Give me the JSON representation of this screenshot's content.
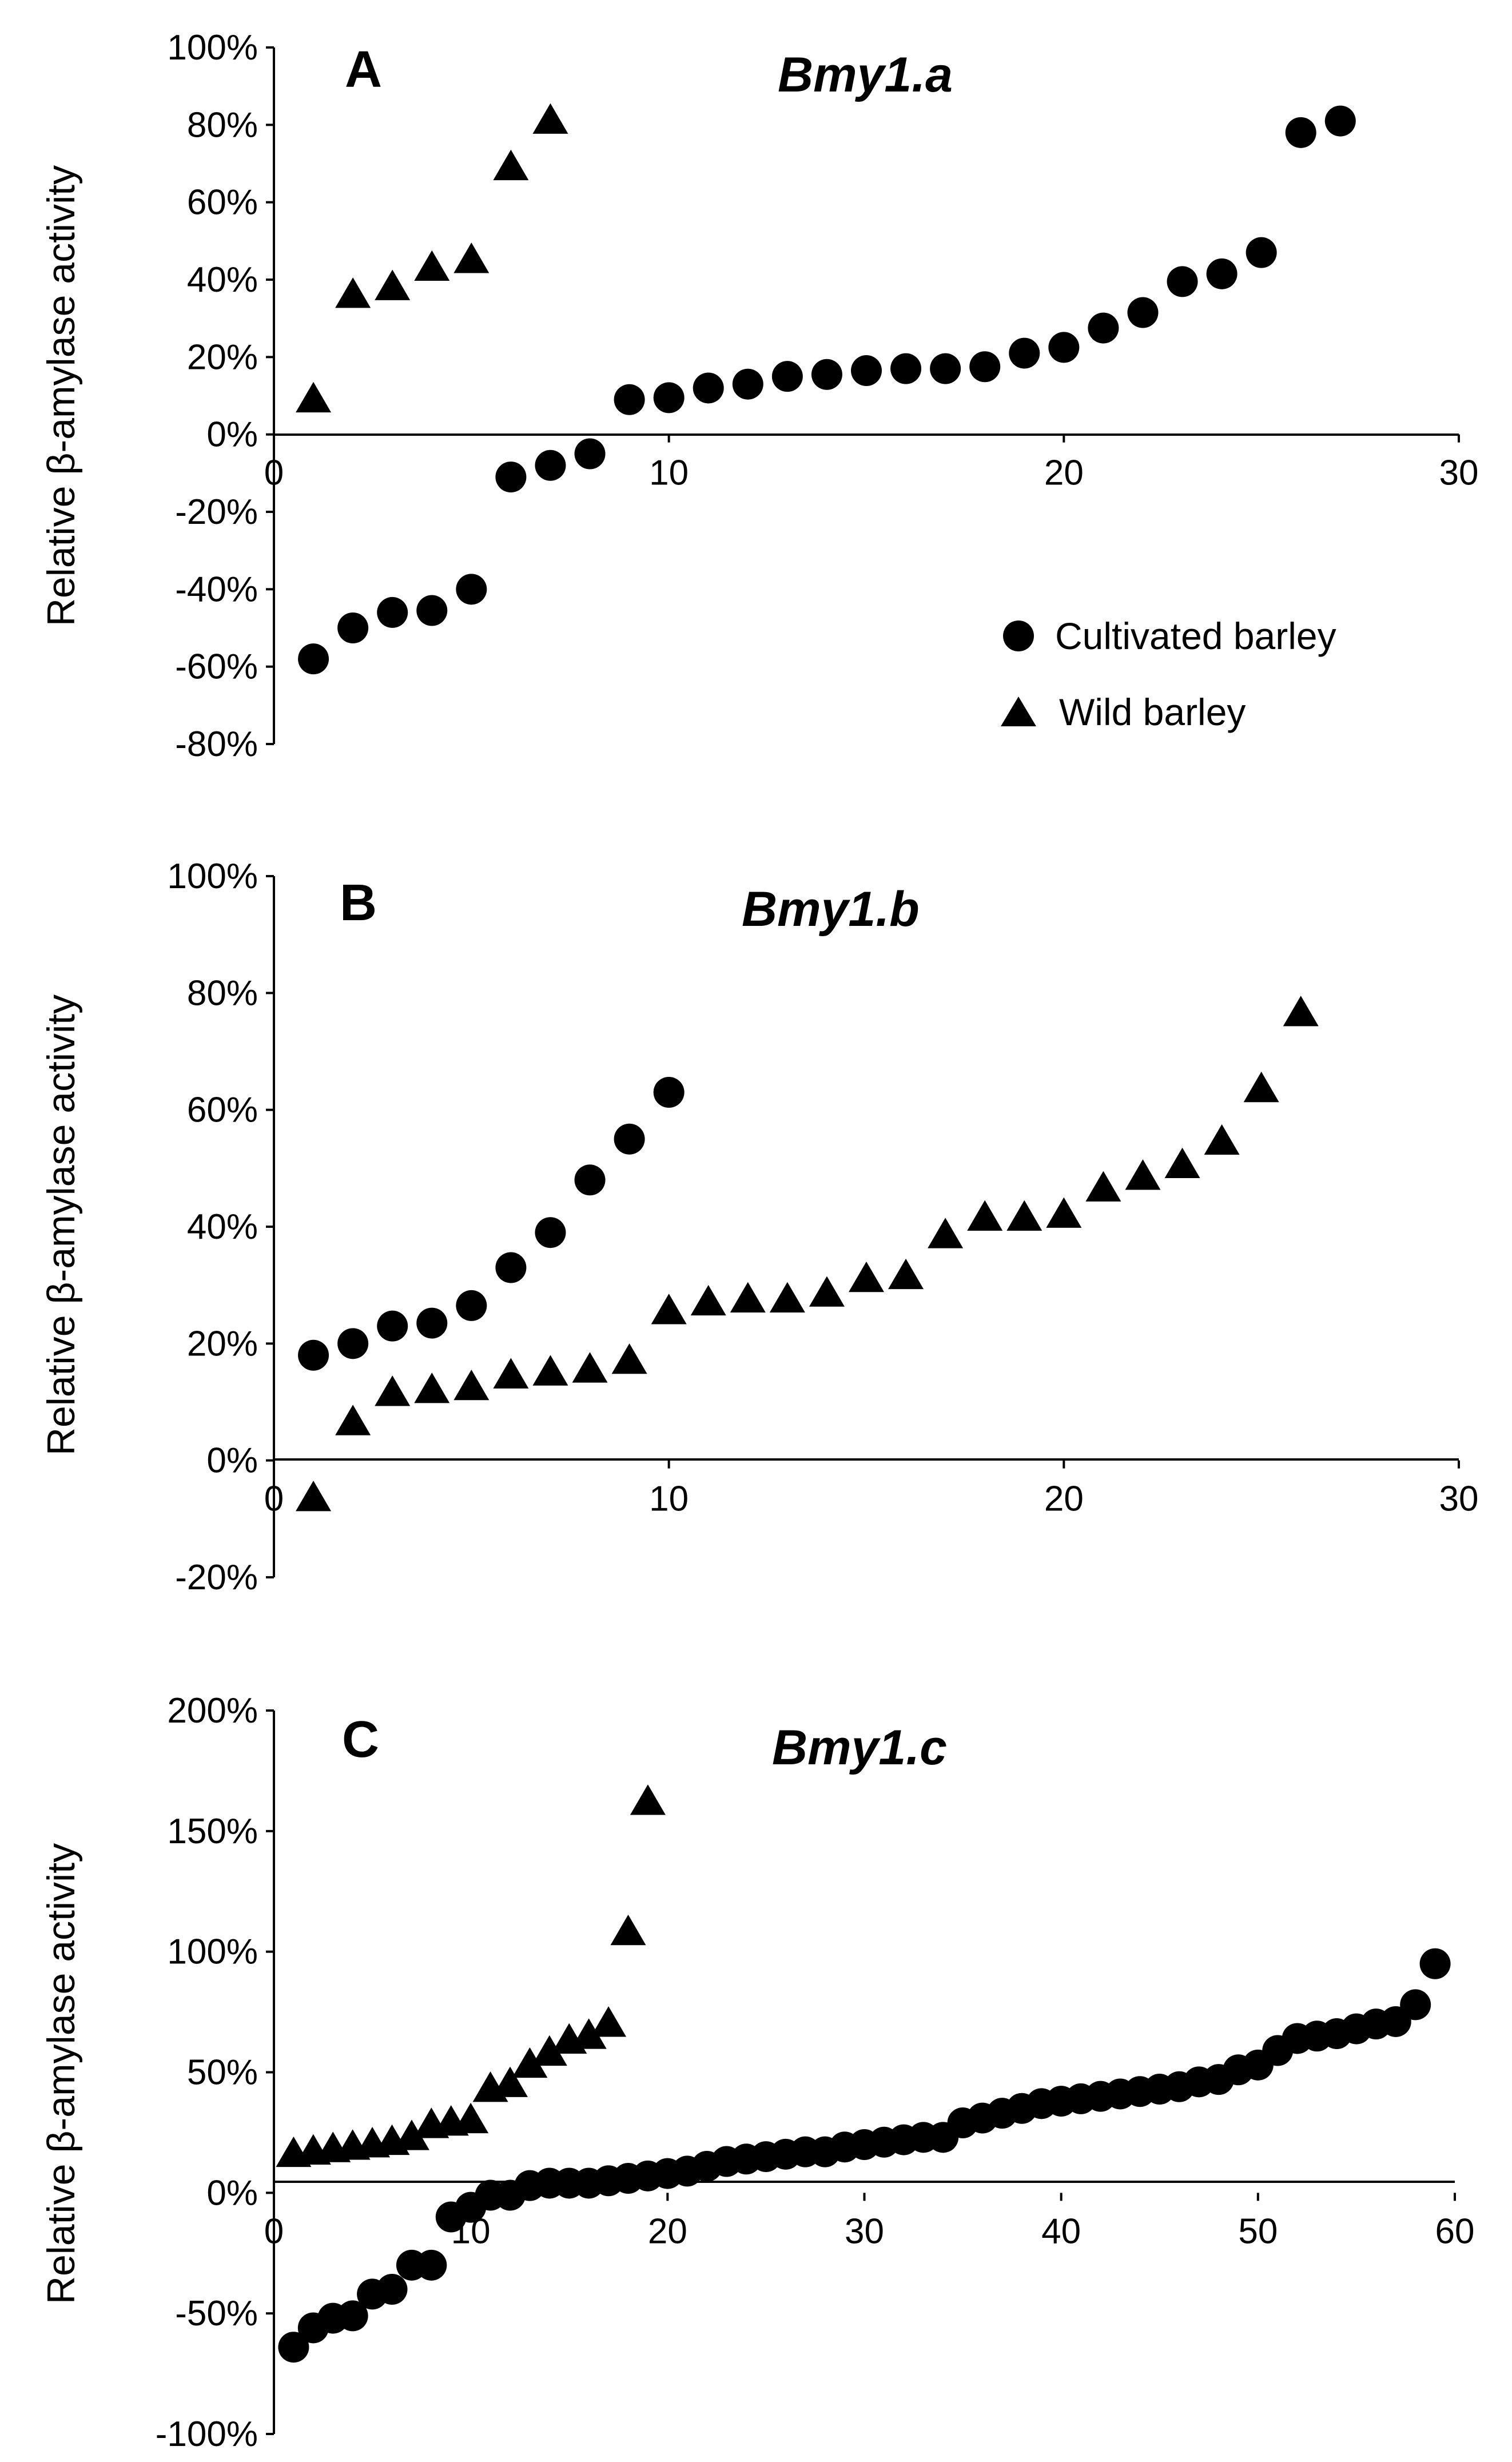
{
  "colors": {
    "marker": "#000000",
    "axis": "#000000",
    "background": "#ffffff"
  },
  "legend": {
    "cultivated": "Cultivated barley",
    "wild": "Wild barley",
    "cultivated_marker": "circle",
    "wild_marker": "triangle"
  },
  "chart_data": [
    {
      "type": "scatter",
      "panel": "A",
      "title": "Bmy1.a",
      "xlabel": "",
      "ylabel": "Relative β-amylase activity",
      "xlim": [
        0,
        30
      ],
      "ylim": [
        -0.8,
        1.0
      ],
      "xticks": [
        "0",
        "10",
        "20",
        "30"
      ],
      "yticks": [
        "100%",
        "80%",
        "60%",
        "40%",
        "20%",
        "0%",
        "-20%",
        "-40%",
        "-60%",
        "-80%"
      ],
      "legend_position": "lower-right",
      "series": [
        {
          "name": "Cultivated barley",
          "marker": "circle",
          "x": [
            1,
            2,
            3,
            4,
            5,
            6,
            7,
            8,
            9,
            10,
            11,
            12,
            13,
            14,
            15,
            16,
            17,
            18,
            19,
            20,
            21,
            22,
            23,
            24,
            25,
            26,
            27
          ],
          "y": [
            -0.58,
            -0.5,
            -0.46,
            -0.455,
            -0.4,
            -0.11,
            -0.08,
            -0.05,
            0.09,
            0.095,
            0.12,
            0.13,
            0.15,
            0.155,
            0.165,
            0.17,
            0.17,
            0.175,
            0.21,
            0.225,
            0.275,
            0.315,
            0.395,
            0.415,
            0.47,
            0.78,
            0.81
          ]
        },
        {
          "name": "Wild barley",
          "marker": "triangle",
          "x": [
            1,
            2,
            3,
            4,
            5,
            6,
            7
          ],
          "y": [
            0.09,
            0.36,
            0.38,
            0.43,
            0.45,
            0.69,
            0.81
          ]
        }
      ]
    },
    {
      "type": "scatter",
      "panel": "B",
      "title": "Bmy1.b",
      "xlabel": "",
      "ylabel": "Relative β-amylase activity",
      "xlim": [
        0,
        30
      ],
      "ylim": [
        -0.2,
        1.0
      ],
      "xticks": [
        "0",
        "10",
        "20",
        "30"
      ],
      "yticks": [
        "100%",
        "80%",
        "60%",
        "40%",
        "20%",
        "0%",
        "-20%"
      ],
      "series": [
        {
          "name": "Cultivated barley",
          "marker": "circle",
          "x": [
            1,
            2,
            3,
            4,
            5,
            6,
            7,
            8,
            9,
            10
          ],
          "y": [
            0.18,
            0.2,
            0.23,
            0.235,
            0.265,
            0.33,
            0.39,
            0.48,
            0.55,
            0.63
          ]
        },
        {
          "name": "Wild barley",
          "marker": "triangle",
          "x": [
            1,
            2,
            3,
            4,
            5,
            6,
            7,
            8,
            9,
            10,
            11,
            12,
            13,
            14,
            15,
            16,
            17,
            18,
            19,
            20,
            21,
            22,
            23,
            24,
            25,
            26
          ],
          "y": [
            -0.065,
            0.065,
            0.115,
            0.12,
            0.125,
            0.145,
            0.15,
            0.155,
            0.17,
            0.255,
            0.27,
            0.275,
            0.275,
            0.285,
            0.31,
            0.315,
            0.385,
            0.415,
            0.415,
            0.42,
            0.465,
            0.485,
            0.505,
            0.545,
            0.635,
            0.765
          ]
        }
      ]
    },
    {
      "type": "scatter",
      "panel": "C",
      "title": "Bmy1.c",
      "xlabel": "",
      "ylabel": "Relative β-amylase activity",
      "xlim": [
        0,
        60
      ],
      "ylim": [
        -1.0,
        2.0
      ],
      "xticks": [
        "0",
        "10",
        "20",
        "30",
        "40",
        "50",
        "60"
      ],
      "yticks": [
        "200%",
        "150%",
        "100%",
        "50%",
        "0%",
        "-50%",
        "-100%"
      ],
      "series": [
        {
          "name": "Cultivated barley",
          "marker": "circle",
          "x": [
            1,
            2,
            3,
            4,
            5,
            6,
            7,
            8,
            9,
            10,
            11,
            12,
            13,
            14,
            15,
            16,
            17,
            18,
            19,
            20,
            21,
            22,
            23,
            24,
            25,
            26,
            27,
            28,
            29,
            30,
            31,
            32,
            33,
            34,
            35,
            36,
            37,
            38,
            39,
            40,
            41,
            42,
            43,
            44,
            45,
            46,
            47,
            48,
            49,
            50,
            51,
            52,
            53,
            54,
            55,
            56,
            57,
            58,
            59
          ],
          "y": [
            -0.64,
            -0.56,
            -0.52,
            -0.51,
            -0.42,
            -0.4,
            -0.3,
            -0.3,
            -0.1,
            -0.06,
            -0.01,
            -0.01,
            0.03,
            0.04,
            0.04,
            0.04,
            0.05,
            0.06,
            0.07,
            0.08,
            0.09,
            0.11,
            0.13,
            0.14,
            0.15,
            0.16,
            0.17,
            0.17,
            0.19,
            0.2,
            0.21,
            0.22,
            0.23,
            0.23,
            0.29,
            0.31,
            0.33,
            0.35,
            0.37,
            0.38,
            0.39,
            0.4,
            0.41,
            0.42,
            0.43,
            0.44,
            0.46,
            0.47,
            0.51,
            0.53,
            0.59,
            0.64,
            0.65,
            0.66,
            0.68,
            0.7,
            0.71,
            0.78,
            0.95
          ]
        },
        {
          "name": "Wild barley",
          "marker": "triangle",
          "x": [
            1,
            2,
            3,
            4,
            5,
            6,
            7,
            8,
            9,
            10,
            11,
            12,
            13,
            14,
            15,
            16,
            17,
            18,
            19
          ],
          "y": [
            0.16,
            0.17,
            0.18,
            0.19,
            0.2,
            0.21,
            0.23,
            0.28,
            0.29,
            0.3,
            0.43,
            0.45,
            0.53,
            0.58,
            0.63,
            0.65,
            0.7,
            1.08,
            1.62
          ]
        }
      ]
    }
  ]
}
